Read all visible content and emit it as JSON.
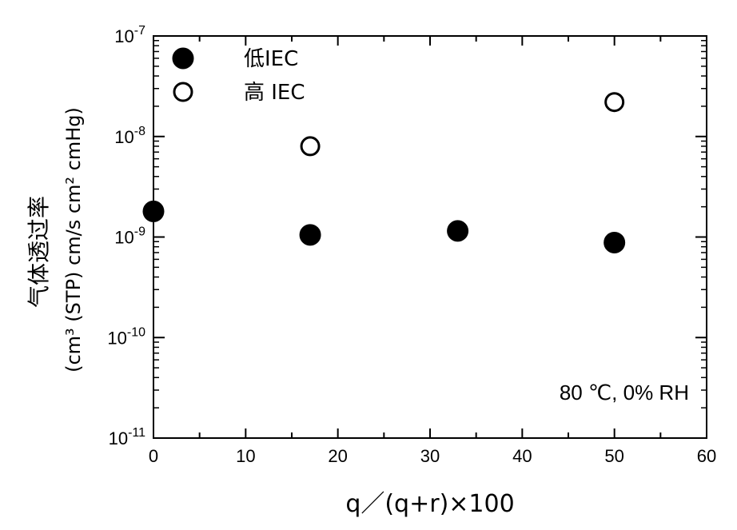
{
  "chart_data": {
    "type": "scatter",
    "xlabel": "q／(q+r)×100",
    "ylabel_line1": "气体透过率",
    "ylabel_line2": "(cm³ (STP) cm/s cm² cmHg)",
    "xlim": [
      0,
      60
    ],
    "xticks": [
      "0",
      "10",
      "20",
      "30",
      "40",
      "50",
      "60"
    ],
    "ylim": [
      1e-11,
      1e-07
    ],
    "yscale": "log",
    "yticks": [
      {
        "base": "10",
        "exp": "-7"
      },
      {
        "base": "10",
        "exp": "-8"
      },
      {
        "base": "10",
        "exp": "-9"
      },
      {
        "base": "10",
        "exp": "-10"
      },
      {
        "base": "10",
        "exp": "-11"
      }
    ],
    "legend_position": "top-left",
    "series": [
      {
        "name": "低IEC",
        "marker": "filled-circle",
        "x": [
          0,
          17,
          33,
          50
        ],
        "y": [
          1.8e-09,
          1.05e-09,
          1.15e-09,
          8.8e-10
        ]
      },
      {
        "name": "高 IEC",
        "marker": "open-circle",
        "x": [
          17,
          50
        ],
        "y": [
          8e-09,
          2.2e-08
        ]
      }
    ],
    "annotation": "80 ℃, 0% RH",
    "grid": false
  }
}
